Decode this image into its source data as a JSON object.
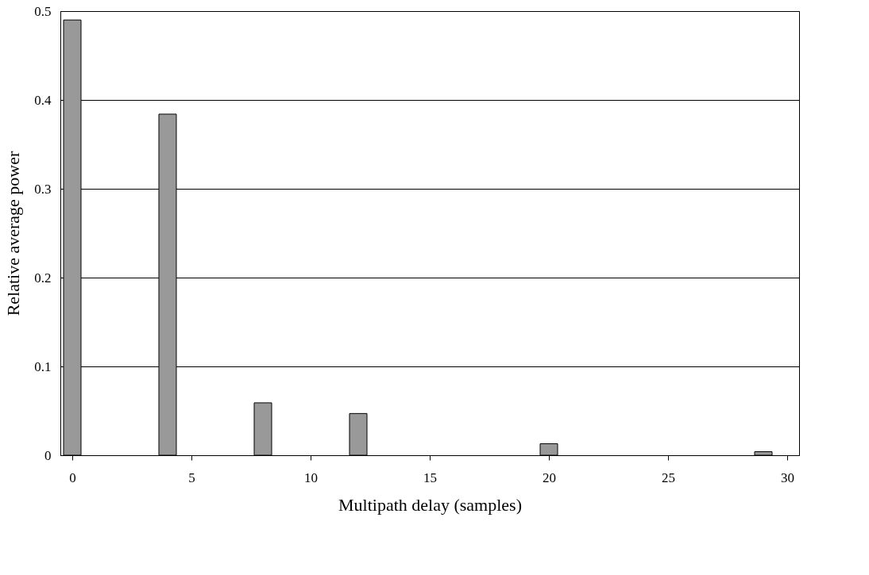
{
  "chart_data": {
    "type": "bar",
    "xlabel": "Multipath delay (samples)",
    "ylabel": "Relative average power",
    "x": [
      0,
      4,
      8,
      12,
      20,
      29
    ],
    "values": [
      0.49,
      0.384,
      0.059,
      0.047,
      0.013,
      0.004
    ],
    "color": "#999999",
    "xlim": [
      -0.5,
      30.5
    ],
    "xticks": [
      0,
      5,
      10,
      15,
      20,
      25,
      30
    ],
    "ylim": [
      0,
      0.5
    ],
    "yticks": [
      0,
      0.1,
      0.2,
      0.3,
      0.4,
      0.5
    ],
    "grid": "y"
  }
}
